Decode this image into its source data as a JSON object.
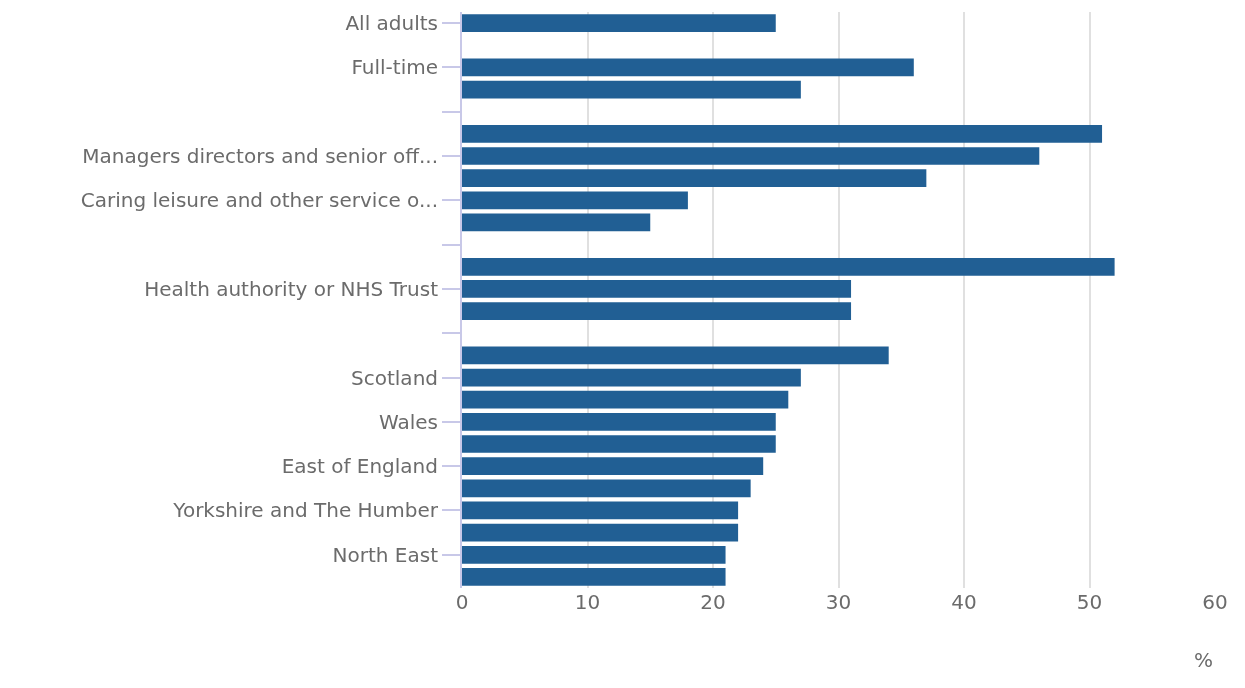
{
  "chart_data": {
    "type": "bar",
    "orientation": "horizontal",
    "xlabel": "%",
    "categories": [
      "All adults",
      null,
      "Full-time",
      null,
      null,
      null,
      "Managers directors and senior off...",
      null,
      "Caring leisure and other service o...",
      null,
      null,
      null,
      "Health authority or NHS Trust",
      null,
      null,
      null,
      "Scotland",
      null,
      "Wales",
      null,
      "East of England",
      null,
      "Yorkshire and The Humber",
      null,
      "North East",
      null
    ],
    "values": [
      25,
      null,
      36,
      27,
      null,
      51,
      46,
      37,
      18,
      15,
      null,
      52,
      31,
      31,
      null,
      34,
      27,
      26,
      25,
      25,
      24,
      23,
      22,
      22,
      21,
      21
    ],
    "color": "#215f94",
    "xlim": [
      0,
      60
    ],
    "xticks": [
      0,
      10,
      20,
      30,
      40,
      50,
      60
    ],
    "grid": "x"
  }
}
